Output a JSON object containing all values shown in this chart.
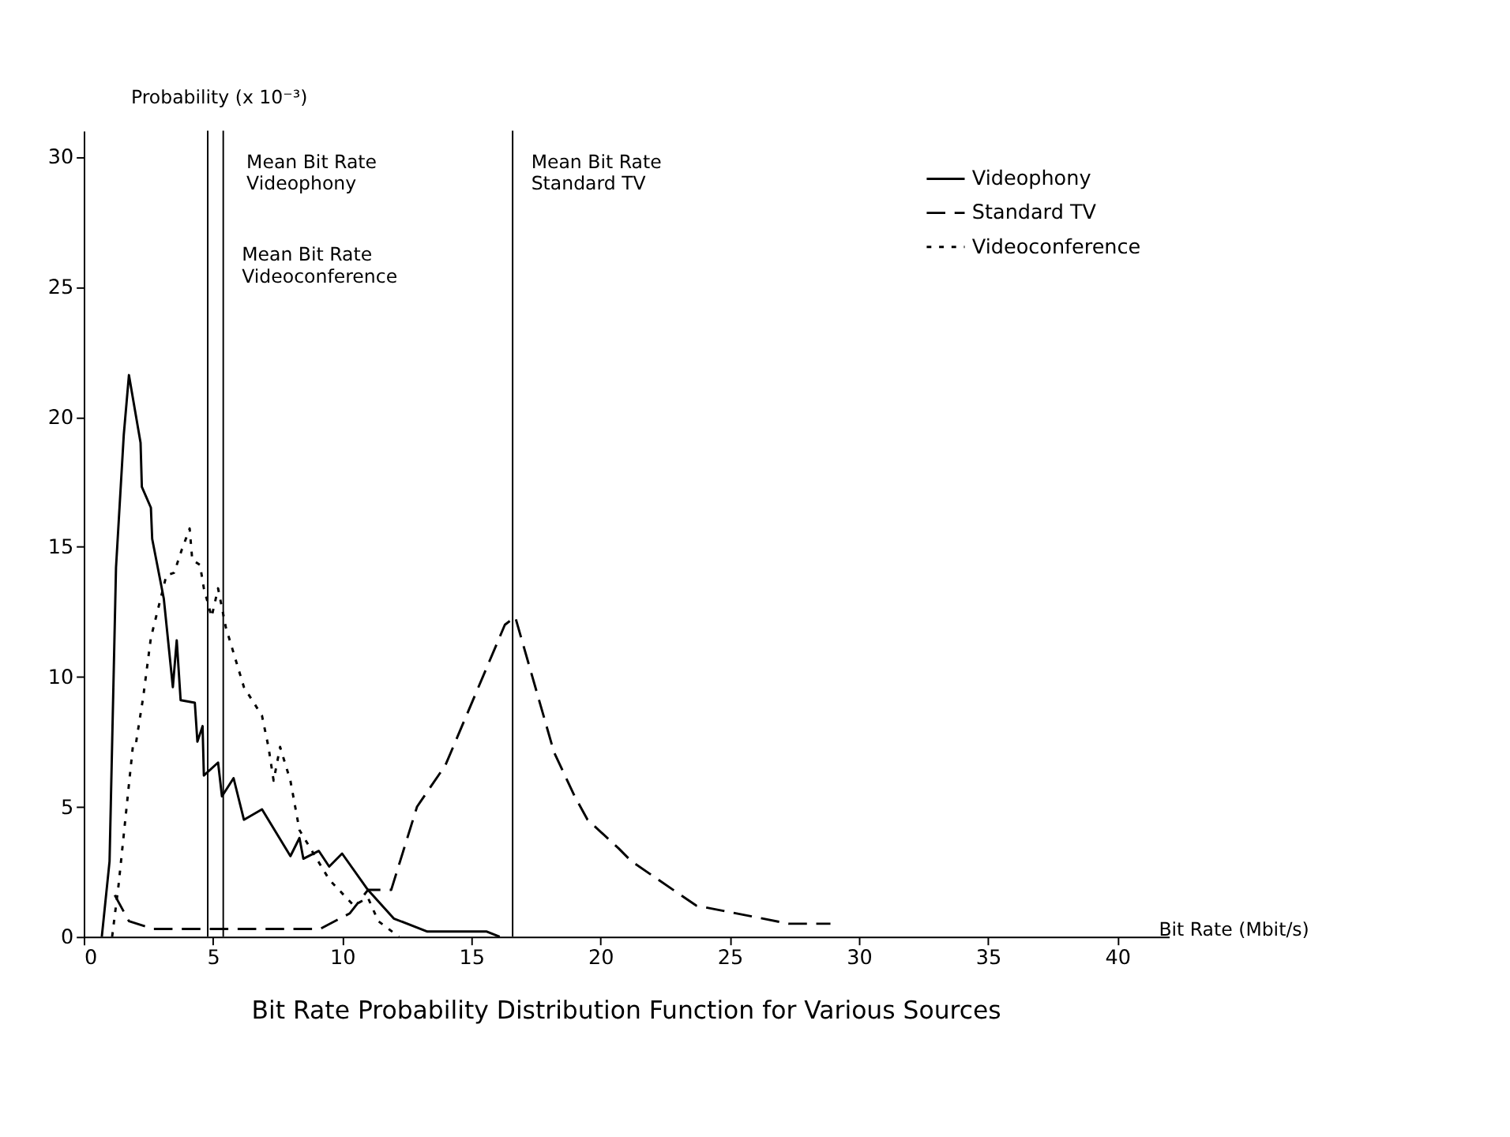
{
  "chart_data": {
    "type": "line",
    "title": "Bit Rate Probability Distribution Function for Various Sources",
    "xlabel": "Bit Rate (Mbit/s)",
    "ylabel": "Probability (x 10⁻³)",
    "xlim": [
      0,
      42
    ],
    "ylim": [
      0,
      31
    ],
    "xticks": [
      0,
      5,
      10,
      15,
      20,
      25,
      30,
      35,
      40
    ],
    "yticks": [
      0,
      5,
      10,
      15,
      20,
      25,
      30
    ],
    "grid": false,
    "legend": "top right",
    "marker": "none",
    "series": [
      {
        "name": "Videophony",
        "color": "#000000",
        "line_style": "solid",
        "x": [
          0.7,
          1.0,
          1.25,
          1.55,
          1.75,
          2.2,
          2.25,
          2.6,
          2.65,
          3.1,
          3.45,
          3.6,
          3.75,
          4.3,
          4.4,
          4.6,
          4.65,
          5.2,
          5.35,
          5.8,
          6.2,
          6.9,
          8.0,
          8.35,
          8.5,
          9.1,
          9.5,
          10.0,
          11.0,
          12.0,
          13.3,
          15.6,
          16.1
        ],
        "values": [
          0,
          2.9,
          14.2,
          19.3,
          21.6,
          19.0,
          17.3,
          16.5,
          15.3,
          13.0,
          9.6,
          11.4,
          9.1,
          9.0,
          7.5,
          8.1,
          6.2,
          6.7,
          5.4,
          6.1,
          4.5,
          4.9,
          3.1,
          3.8,
          3.0,
          3.3,
          2.7,
          3.2,
          1.8,
          0.7,
          0.2,
          0.2,
          0
        ]
      },
      {
        "name": "Standard TV",
        "color": "#000000",
        "line_style": "dashed",
        "x": [
          1.2,
          1.75,
          2.7,
          9.15,
          10.3,
          11.0,
          11.9,
          12.9,
          14.0,
          16.3,
          16.7,
          18.2,
          19.0,
          19.5,
          20.7,
          21.2,
          23.7,
          27.3,
          28.9
        ],
        "values": [
          1.6,
          0.6,
          0.3,
          0.3,
          0.9,
          1.8,
          1.8,
          5.0,
          6.6,
          12.0,
          12.3,
          7.1,
          5.4,
          4.5,
          3.4,
          2.9,
          1.2,
          0.5,
          0.5
        ]
      },
      {
        "name": "Videoconference",
        "color": "#000000",
        "line_style": "dotted",
        "x": [
          1.1,
          1.35,
          1.9,
          2.0,
          2.3,
          2.6,
          3.2,
          3.5,
          3.8,
          4.1,
          4.2,
          4.5,
          4.65,
          4.95,
          5.2,
          5.5,
          6.2,
          6.9,
          7.15,
          7.35,
          7.6,
          8.0,
          8.35,
          9.5,
          10.45,
          11.0,
          11.4,
          12.2
        ],
        "values": [
          0,
          2.0,
          7.3,
          7.3,
          9.2,
          11.5,
          13.9,
          14.0,
          14.9,
          15.7,
          14.5,
          14.3,
          13.4,
          12.3,
          13.4,
          11.9,
          9.6,
          8.5,
          7.3,
          6.0,
          7.3,
          6.0,
          4.1,
          2.2,
          1.2,
          1.5,
          0.6,
          0
        ]
      }
    ],
    "ref_lines": [
      {
        "axis": "x",
        "value": 4.8,
        "label": "Mean Bit Rate\nVideophony"
      },
      {
        "axis": "x",
        "value": 5.4,
        "label": "Mean Bit Rate\nVideoconference"
      },
      {
        "axis": "x",
        "value": 16.6,
        "label": "Mean Bit Rate\nStandard TV"
      }
    ]
  }
}
